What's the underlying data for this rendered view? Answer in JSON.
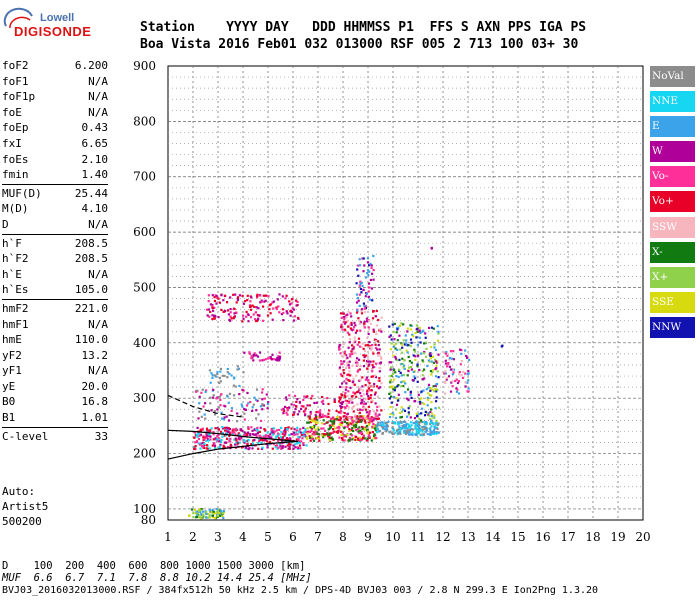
{
  "logo": {
    "top": "Lowell",
    "main": "DIGISONDE"
  },
  "header": {
    "line1": "Station    YYYY DAY   DDD HHMMSS P1  FFS S AXN PPS IGA PS",
    "line2": "Boa Vista 2016 Feb01 032 013000 RSF 005 2 713 100 03+ 30"
  },
  "params": [
    [
      {
        "k": "foF2",
        "v": "6.200"
      },
      {
        "k": "foF1",
        "v": "N/A"
      },
      {
        "k": "foF1p",
        "v": "N/A"
      },
      {
        "k": "foE",
        "v": "N/A"
      },
      {
        "k": "foEp",
        "v": "0.43"
      },
      {
        "k": "fxI",
        "v": "6.65"
      },
      {
        "k": "foEs",
        "v": "2.10"
      },
      {
        "k": "fmin",
        "v": "1.40"
      }
    ],
    [
      {
        "k": "MUF(D)",
        "v": "25.44"
      },
      {
        "k": "M(D)",
        "v": "4.10"
      },
      {
        "k": "D",
        "v": "N/A"
      }
    ],
    [
      {
        "k": "h`F",
        "v": "208.5"
      },
      {
        "k": "h`F2",
        "v": "208.5"
      },
      {
        "k": "h`E",
        "v": "N/A"
      },
      {
        "k": "h`Es",
        "v": "105.0"
      }
    ],
    [
      {
        "k": "hmF2",
        "v": "221.0"
      },
      {
        "k": "hmF1",
        "v": "N/A"
      },
      {
        "k": "hmE",
        "v": "110.0"
      },
      {
        "k": "yF2",
        "v": "13.2"
      },
      {
        "k": "yF1",
        "v": "N/A"
      },
      {
        "k": "yE",
        "v": "20.0"
      },
      {
        "k": "B0",
        "v": "16.8"
      },
      {
        "k": "B1",
        "v": "1.01"
      }
    ],
    [
      {
        "k": "C-level",
        "v": "33"
      }
    ]
  ],
  "footer_left": [
    "Auto:",
    "Artist5",
    "500200"
  ],
  "bottom": {
    "d_line": "D    100  200  400  600  800 1000 1500 3000 [km]",
    "muf_line": "MUF  6.6  6.7  7.1  7.8  8.8 10.2 14.4 25.4 [MHz]",
    "file_line": "BVJ03_2016032013000.RSF / 384fx512h 50 kHz 2.5 km / DPS-4D BVJ03 003 / 2.8 N 299.3 E Ion2Png 1.3.20"
  },
  "legend": [
    {
      "label": "NoVal",
      "color": "#8c8c8c"
    },
    {
      "label": "NNE",
      "color": "#16d6f2"
    },
    {
      "label": "E",
      "color": "#3aa3ea"
    },
    {
      "label": "W",
      "color": "#b0009a"
    },
    {
      "label": "Vo-",
      "color": "#ff2f9a"
    },
    {
      "label": "Vo+",
      "color": "#e80028"
    },
    {
      "label": "SSW",
      "color": "#f7b6bd"
    },
    {
      "label": "X-",
      "color": "#117a11"
    },
    {
      "label": "X+",
      "color": "#8fd14a"
    },
    {
      "label": "SSE",
      "color": "#d8da10"
    },
    {
      "label": "NNW",
      "color": "#1212b0"
    }
  ],
  "chart_data": {
    "type": "scatter",
    "title": "",
    "xlabel": "",
    "ylabel": "",
    "xlim": [
      1,
      20
    ],
    "ylim": [
      80,
      900
    ],
    "x_ticks": [
      1,
      2,
      3,
      4,
      5,
      6,
      7,
      8,
      9,
      10,
      11,
      12,
      13,
      14,
      15,
      16,
      17,
      18,
      19,
      20
    ],
    "y_ticks": [
      100,
      200,
      300,
      400,
      500,
      600,
      700,
      800,
      900
    ],
    "y_bottom_label": "80",
    "profile_solid": [
      [
        1.0,
        190
      ],
      [
        2.0,
        200
      ],
      [
        3.0,
        208
      ],
      [
        4.0,
        213
      ],
      [
        5.0,
        218
      ],
      [
        6.2,
        222
      ],
      [
        4.2,
        230
      ],
      [
        3.0,
        236
      ],
      [
        2.0,
        240
      ],
      [
        1.0,
        242
      ]
    ],
    "profile_dashed": [
      [
        1.0,
        305
      ],
      [
        2.0,
        285
      ],
      [
        3.0,
        272
      ],
      [
        4.0,
        266
      ]
    ],
    "clusters": [
      {
        "x": [
          1.8,
          3.2
        ],
        "y": [
          85,
          102
        ],
        "colors": [
          "#117a11",
          "#3aa3ea",
          "#d8da10",
          "#8fd14a"
        ],
        "n": 90
      },
      {
        "x": [
          2.0,
          6.5
        ],
        "y": [
          210,
          250
        ],
        "colors": [
          "#e80028",
          "#ff2f9a",
          "#b0009a",
          "#16d6f2"
        ],
        "n": 420
      },
      {
        "x": [
          6.5,
          9.3
        ],
        "y": [
          225,
          270
        ],
        "colors": [
          "#e80028",
          "#d8da10",
          "#ff2f9a",
          "#117a11"
        ],
        "n": 320
      },
      {
        "x": [
          9.3,
          11.8
        ],
        "y": [
          235,
          260
        ],
        "colors": [
          "#3aa3ea",
          "#16d6f2",
          "#8c8c8c"
        ],
        "n": 200
      },
      {
        "x": [
          7.8,
          9.5
        ],
        "y": [
          260,
          460
        ],
        "colors": [
          "#e80028",
          "#ff2f9a",
          "#b0009a",
          "#f7b6bd"
        ],
        "n": 380
      },
      {
        "x": [
          8.5,
          9.2
        ],
        "y": [
          460,
          560
        ],
        "colors": [
          "#b0009a",
          "#3aa3ea",
          "#ff2f9a",
          "#1212b0"
        ],
        "n": 60
      },
      {
        "x": [
          9.8,
          11.8
        ],
        "y": [
          260,
          440
        ],
        "colors": [
          "#d8da10",
          "#b0009a",
          "#117a11",
          "#1212b0",
          "#3aa3ea",
          "#8fd14a"
        ],
        "n": 300
      },
      {
        "x": [
          12.0,
          13.0
        ],
        "y": [
          310,
          390
        ],
        "colors": [
          "#b0009a",
          "#ff2f9a",
          "#f7b6bd",
          "#3aa3ea"
        ],
        "n": 70
      },
      {
        "x": [
          2.5,
          6.2
        ],
        "y": [
          440,
          490
        ],
        "colors": [
          "#b0009a",
          "#ff2f9a",
          "#e80028"
        ],
        "n": 160
      },
      {
        "x": [
          4.0,
          5.5
        ],
        "y": [
          370,
          385
        ],
        "colors": [
          "#b0009a",
          "#ff2f9a"
        ],
        "n": 40
      },
      {
        "x": [
          2.0,
          5.0
        ],
        "y": [
          260,
          320
        ],
        "colors": [
          "#8c8c8c",
          "#3aa3ea",
          "#ff2f9a",
          "#b0009a"
        ],
        "n": 90
      },
      {
        "x": [
          2.5,
          4.0
        ],
        "y": [
          320,
          360
        ],
        "colors": [
          "#3aa3ea",
          "#8c8c8c"
        ],
        "n": 30
      },
      {
        "x": [
          5.5,
          8.0
        ],
        "y": [
          270,
          310
        ],
        "colors": [
          "#b0009a",
          "#ff2f9a",
          "#e80028"
        ],
        "n": 80
      },
      {
        "x": [
          11.5,
          11.6
        ],
        "y": [
          570,
          575
        ],
        "colors": [
          "#b0009a"
        ],
        "n": 2
      },
      {
        "x": [
          14.3,
          14.4
        ],
        "y": [
          393,
          397
        ],
        "colors": [
          "#1212b0"
        ],
        "n": 2
      }
    ]
  }
}
